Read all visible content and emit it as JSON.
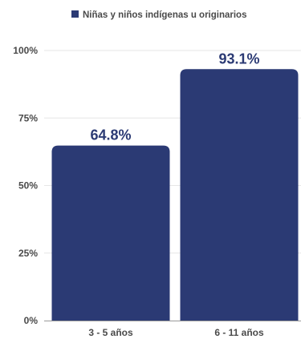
{
  "chart_data": {
    "type": "bar",
    "categories": [
      "3 - 5 años",
      "6 - 11 años"
    ],
    "series": [
      {
        "name": "Niñas y niños indígenas u originarios",
        "values": [
          64.8,
          93.1
        ],
        "labels": [
          "64.8%",
          "93.1%"
        ],
        "color": "#2b3a74"
      }
    ],
    "ylim": [
      0,
      100
    ],
    "yticks": [
      0,
      25,
      50,
      75,
      100
    ],
    "ytick_labels": [
      "0%",
      "25%",
      "50%",
      "75%",
      "100%"
    ],
    "legend_position": "top-center",
    "grid": true
  }
}
